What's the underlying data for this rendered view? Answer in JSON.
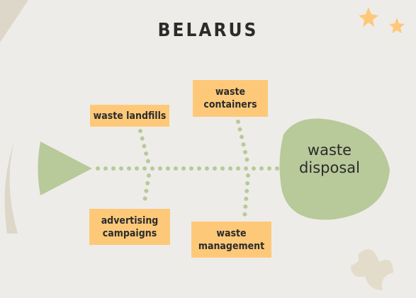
{
  "title": "BELARUS",
  "head": {
    "label": "waste disposal"
  },
  "causes": [
    {
      "label": "waste landfills"
    },
    {
      "label": "waste containers"
    },
    {
      "label": "advertising campaigns"
    },
    {
      "label": "waste management"
    }
  ]
}
